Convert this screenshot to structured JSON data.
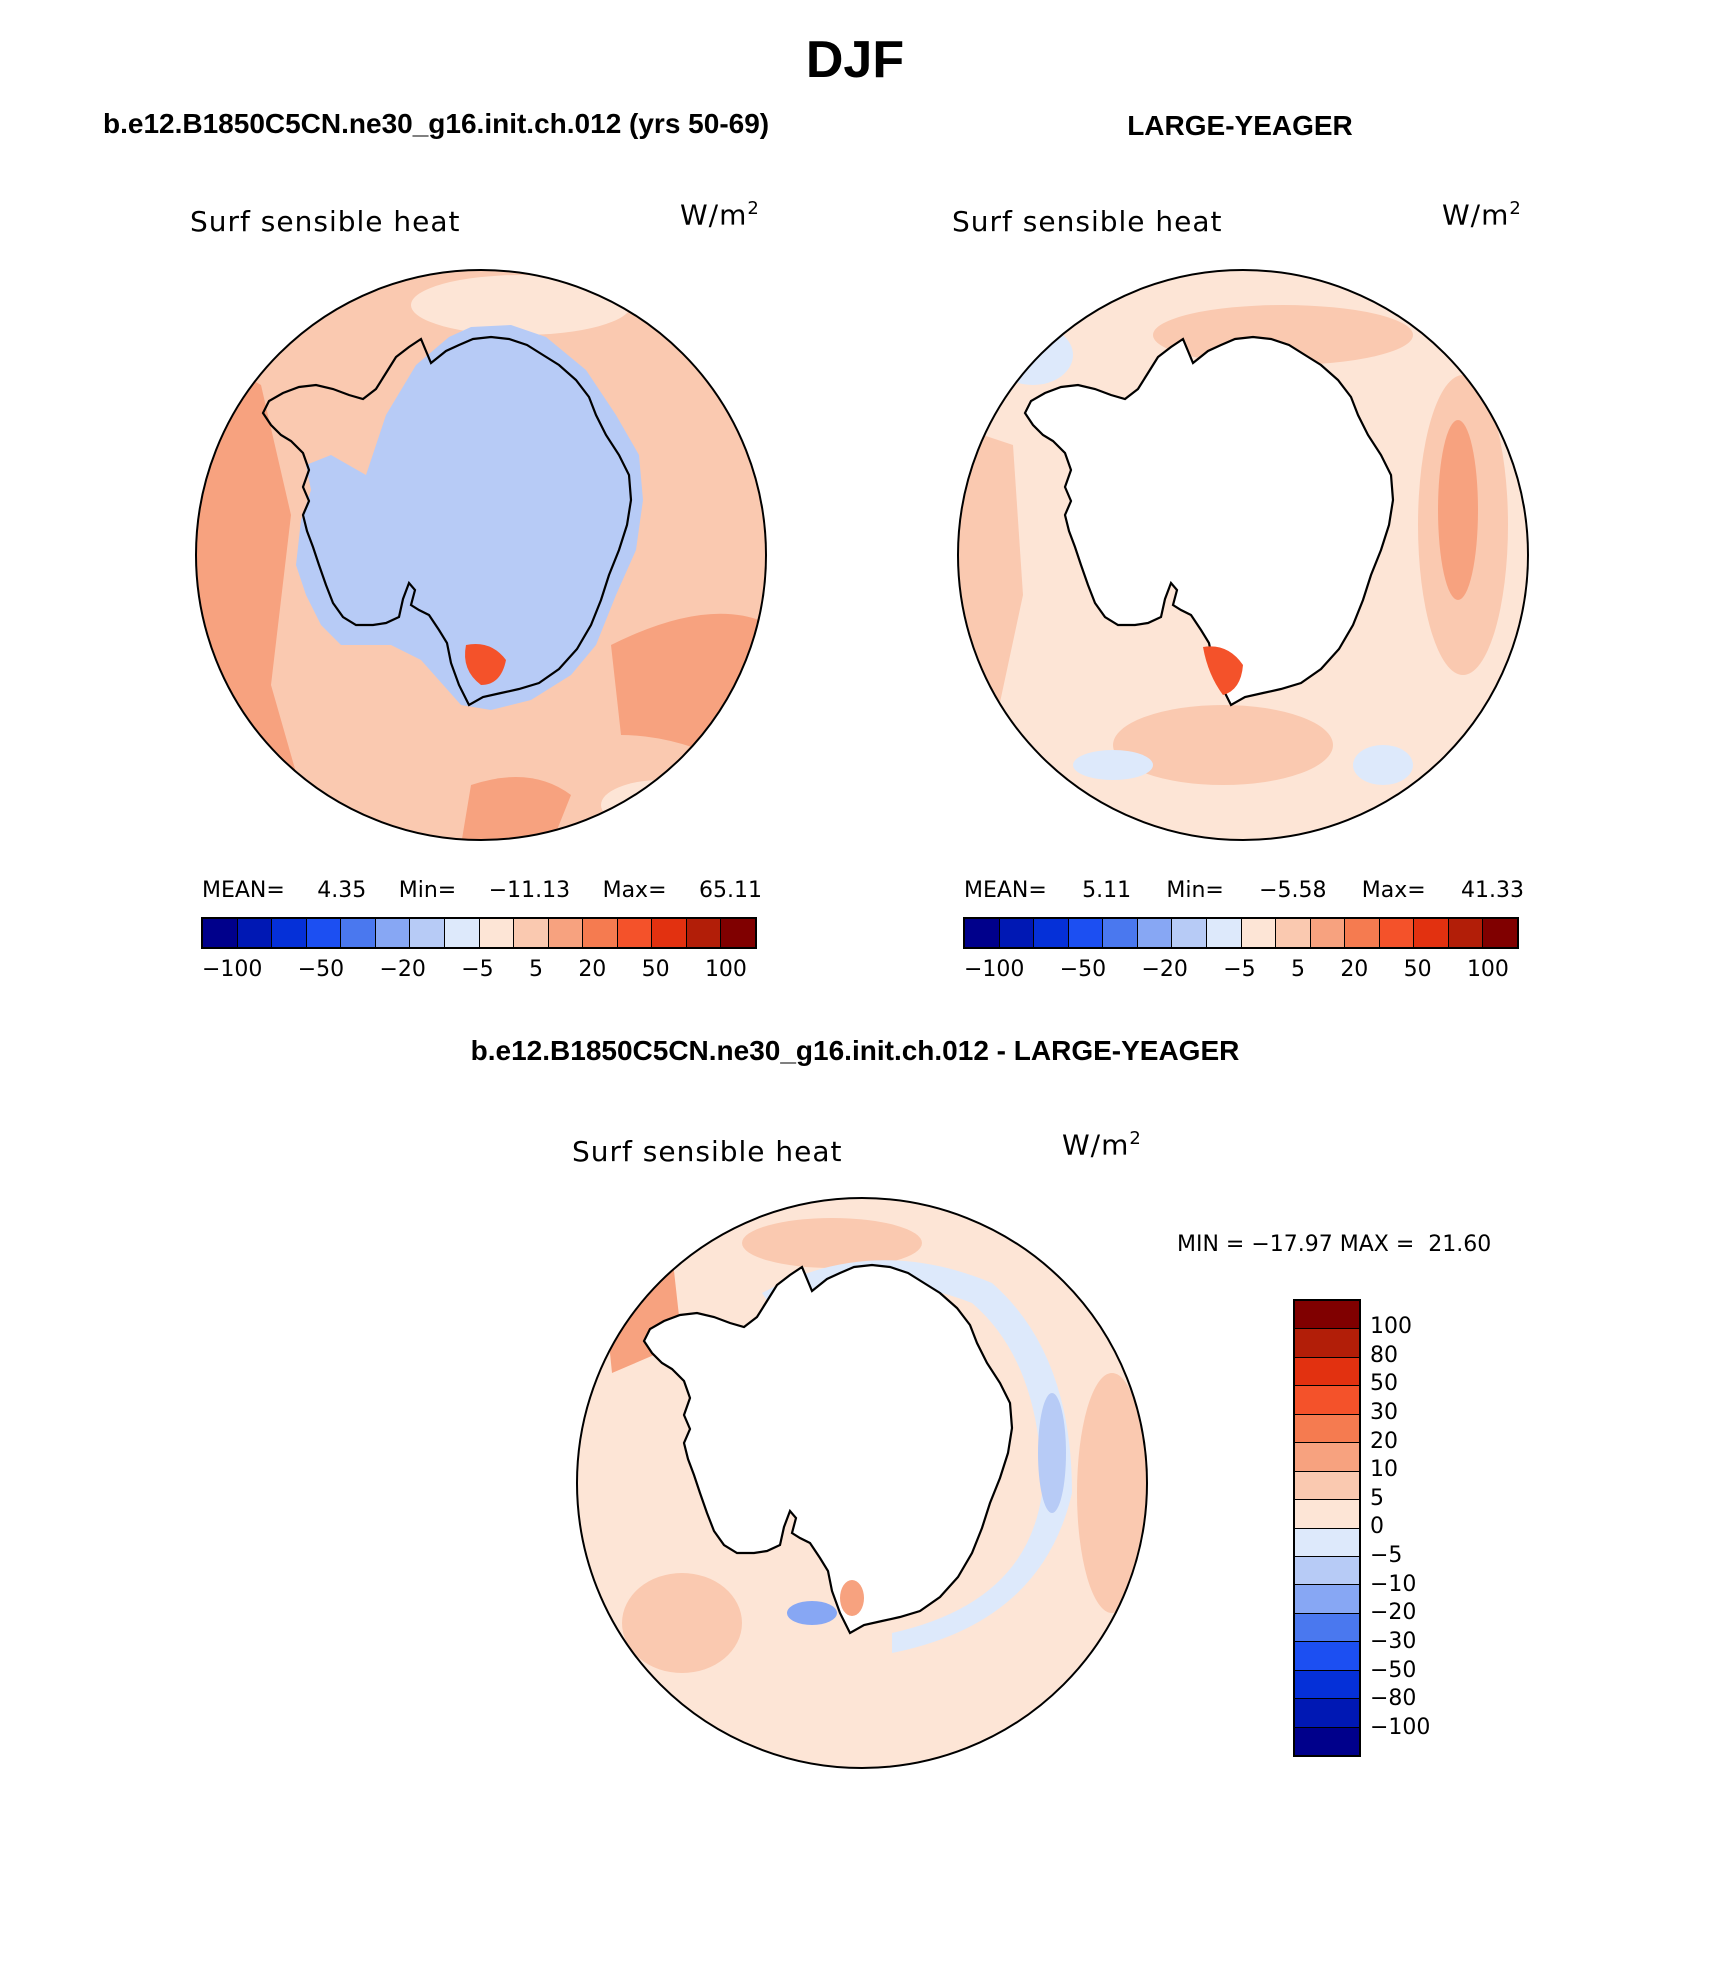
{
  "page": {
    "season_title": "DJF",
    "panel_a_title": "b.e12.B1850C5CN.ne30_g16.init.ch.012 (yrs 50-69)",
    "panel_b_title": "LARGE-YEAGER",
    "panel_c_title": "b.e12.B1850C5CN.ne30_g16.init.ch.012 - LARGE-YEAGER"
  },
  "panels": {
    "a": {
      "variable": "Surf sensible heat",
      "units": "W/m",
      "units_exp": "2",
      "mean_label": "MEAN=",
      "mean_value": "4.35",
      "min_label": "Min=",
      "min_value": "−11.13",
      "max_label": "Max=",
      "max_value": "65.11"
    },
    "b": {
      "variable": "Surf sensible heat",
      "units": "W/m",
      "units_exp": "2",
      "mean_label": "MEAN=",
      "mean_value": "5.11",
      "min_label": "Min=",
      "min_value": "−5.58",
      "max_label": "Max=",
      "max_value": "41.33"
    },
    "c": {
      "variable": "Surf sensible heat",
      "units": "W/m",
      "units_exp": "2",
      "minmax_text": "MIN = −17.97 MAX =  21.60"
    }
  },
  "colorbar_horizontal": {
    "colors": [
      "#00008b",
      "#0018b4",
      "#0530d8",
      "#1c4ff2",
      "#4a78ef",
      "#87a7f4",
      "#b7cbf6",
      "#dde9fb",
      "#fde5d6",
      "#fac9b0",
      "#f7a27f",
      "#f57b50",
      "#f4522a",
      "#e23110",
      "#b21e08",
      "#800000"
    ],
    "tick_labels": [
      "−100",
      "−50",
      "−20",
      "−5",
      "5",
      "20",
      "50",
      "100"
    ]
  },
  "colorbar_vertical": {
    "colors": [
      "#800000",
      "#b21e08",
      "#e23110",
      "#f4522a",
      "#f57b50",
      "#f7a27f",
      "#fac9b0",
      "#fde5d6",
      "#dde9fb",
      "#b7cbf6",
      "#87a7f4",
      "#4a78ef",
      "#1c4ff2",
      "#0530d8",
      "#0018b4",
      "#00008b"
    ],
    "tick_labels": [
      "100",
      "80",
      "50",
      "30",
      "20",
      "10",
      "5",
      "0",
      "−5",
      "−10",
      "−20",
      "−30",
      "−50",
      "−80",
      "−100"
    ]
  },
  "map_colors": {
    "ocean_a": "#fac9b0",
    "ice_a": "#b7cbf6",
    "ocean_b": "#fde5d6",
    "ocean_c": "#fde5d6",
    "land_blank": "#ffffff",
    "warm_patch": "#f7a27f",
    "hot_patch": "#f4522a",
    "cool_patch": "#dde9fb",
    "cold_patch": "#87a7f4"
  }
}
